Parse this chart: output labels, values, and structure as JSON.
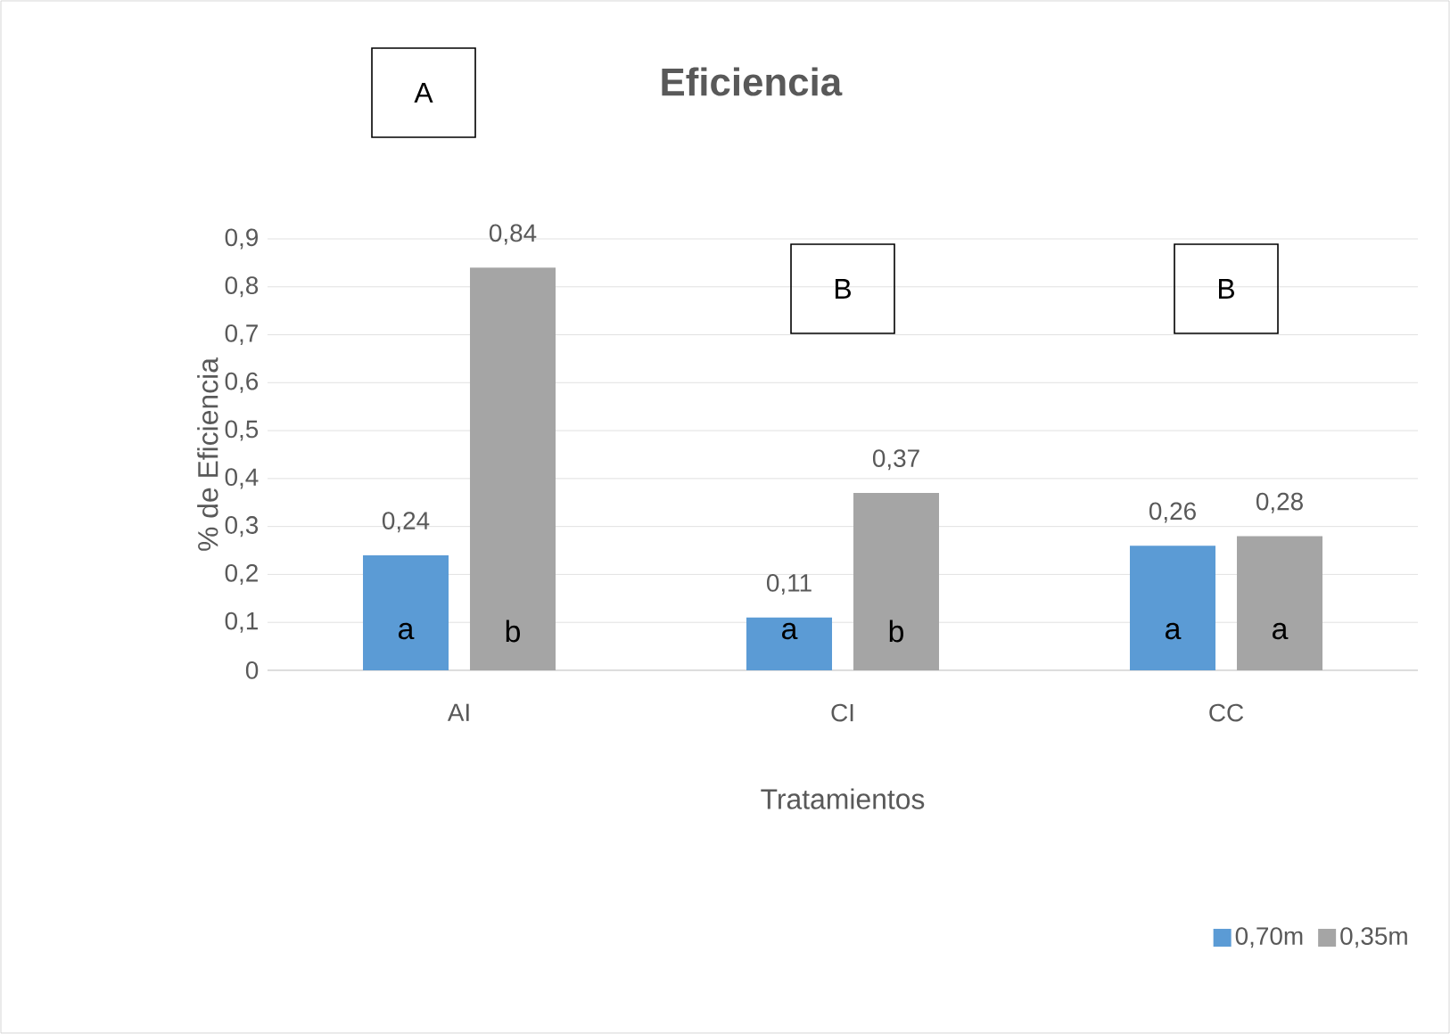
{
  "chart_data": {
    "type": "bar",
    "title": "Eficiencia",
    "xlabel": "Tratamientos",
    "ylabel": "% de Eficiencia",
    "categories": [
      "AI",
      "CI",
      "CC"
    ],
    "series": [
      {
        "name": "0,70m",
        "color": "#5b9bd5",
        "values": [
          0.24,
          0.11,
          0.26
        ],
        "value_labels": [
          "0,24",
          "0,11",
          "0,26"
        ]
      },
      {
        "name": "0,35m",
        "color": "#a5a5a5",
        "values": [
          0.84,
          0.37,
          0.28
        ],
        "value_labels": [
          "0,84",
          "0,37",
          "0,28"
        ]
      }
    ],
    "ylim": [
      0,
      0.9
    ],
    "yticks": [
      0,
      {
        "value": 0.1,
        "label": "0,1"
      },
      {
        "value": 0.2,
        "label": "0,2"
      },
      {
        "value": 0.3,
        "label": "0,3"
      },
      {
        "value": 0.4,
        "label": "0,4"
      },
      {
        "value": 0.5,
        "label": "0,5"
      },
      {
        "value": 0.6,
        "label": "0,6"
      },
      {
        "value": 0.7,
        "label": "0,7"
      },
      {
        "value": 0.8,
        "label": "0,8"
      },
      {
        "value": 0.9,
        "label": "0,9"
      }
    ],
    "grid": "y",
    "legend": "bottom right",
    "annotations": [
      "A",
      "B",
      "B",
      "a",
      "b",
      "a",
      "b",
      "a",
      "a"
    ]
  }
}
